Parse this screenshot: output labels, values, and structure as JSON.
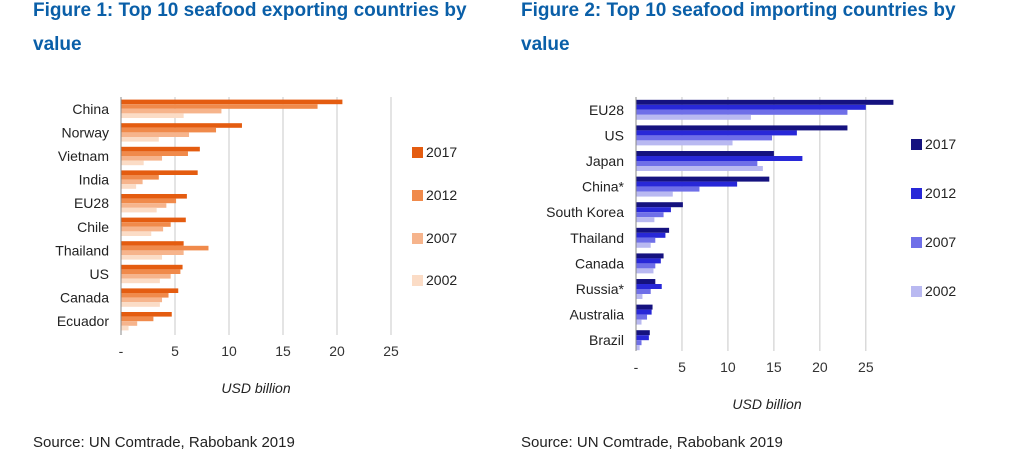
{
  "chart_data": [
    {
      "type": "bar",
      "orientation": "horizontal",
      "title": "Figure 1: Top 10 seafood exporting countries by value",
      "source": "Source: UN Comtrade, Rabobank 2019",
      "xlabel": "USD billion",
      "xlim": [
        0,
        25
      ],
      "xticks": [
        "-",
        "5",
        "10",
        "15",
        "20",
        "25"
      ],
      "grid": true,
      "legend_position": "right",
      "categories": [
        "China",
        "Norway",
        "Vietnam",
        "India",
        "EU28",
        "Chile",
        "Thailand",
        "US",
        "Canada",
        "Ecuador"
      ],
      "series": [
        {
          "name": "2017",
          "color": "#e45c10",
          "values": [
            20.5,
            11.2,
            7.3,
            7.1,
            6.1,
            6.0,
            5.8,
            5.7,
            5.3,
            4.7
          ]
        },
        {
          "name": "2012",
          "color": "#f08a4b",
          "values": [
            18.2,
            8.8,
            6.2,
            3.5,
            5.1,
            4.6,
            8.1,
            5.5,
            4.4,
            3.0
          ]
        },
        {
          "name": "2007",
          "color": "#f6b48c",
          "values": [
            9.3,
            6.3,
            3.8,
            2.0,
            4.2,
            3.9,
            5.8,
            4.6,
            3.8,
            1.5
          ]
        },
        {
          "name": "2002",
          "color": "#fbdcc6",
          "values": [
            5.8,
            3.5,
            2.1,
            1.4,
            3.3,
            2.8,
            3.8,
            3.6,
            3.6,
            0.7
          ]
        }
      ]
    },
    {
      "type": "bar",
      "orientation": "horizontal",
      "title": "Figure 2: Top 10 seafood importing countries by value",
      "source": "Source: UN Comtrade, Rabobank 2019",
      "xlabel": "USD billion",
      "xlim": [
        0,
        28.5
      ],
      "xticks": [
        "-",
        "5",
        "10",
        "15",
        "20",
        "25"
      ],
      "grid": true,
      "legend_position": "right",
      "categories": [
        "EU28",
        "US",
        "Japan",
        "China*",
        "South Korea",
        "Thailand",
        "Canada",
        "Russia*",
        "Australia",
        "Brazil"
      ],
      "series": [
        {
          "name": "2017",
          "color": "#15127f",
          "values": [
            28.0,
            23.0,
            15.0,
            14.5,
            5.1,
            3.6,
            3.0,
            2.1,
            1.8,
            1.5
          ]
        },
        {
          "name": "2012",
          "color": "#2828d8",
          "values": [
            25.0,
            17.5,
            18.1,
            11.0,
            3.8,
            3.2,
            2.7,
            2.8,
            1.7,
            1.4
          ]
        },
        {
          "name": "2007",
          "color": "#6f6fe8",
          "values": [
            23.0,
            14.8,
            13.2,
            6.9,
            3.0,
            2.1,
            2.1,
            1.6,
            1.2,
            0.6
          ]
        },
        {
          "name": "2002",
          "color": "#b9b9f1",
          "values": [
            12.5,
            10.5,
            13.8,
            4.0,
            2.0,
            1.6,
            1.9,
            0.7,
            0.6,
            0.4
          ]
        }
      ]
    }
  ]
}
